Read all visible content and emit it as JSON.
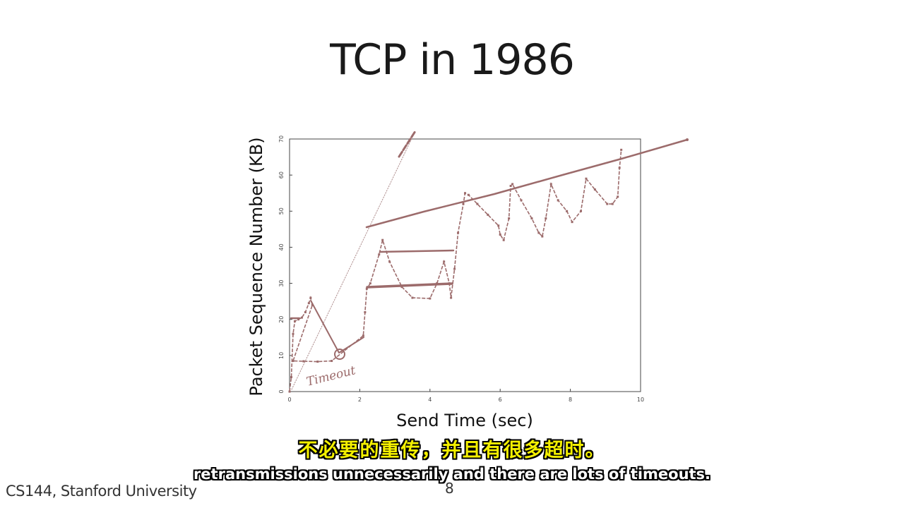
{
  "slide": {
    "title": "TCP in 1986",
    "footer": "CS144, Stanford University",
    "page_number": "8"
  },
  "subtitles": {
    "zh": "不必要的重传，并且有很多超时。",
    "en": "retransmissions unnecessarily and there are lots of timeouts."
  },
  "chart_data": {
    "type": "scatter",
    "title": "",
    "xlabel": "Send Time (sec)",
    "ylabel": "Packet Sequence Number (KB)",
    "xlim": [
      0,
      10
    ],
    "ylim": [
      0,
      70
    ],
    "xticks": [
      0,
      2,
      4,
      6,
      8,
      10
    ],
    "yticks": [
      0,
      10,
      20,
      30,
      40,
      50,
      60,
      70
    ],
    "grid": false,
    "series": [
      {
        "values": [
          [
            0.0,
            0
          ],
          [
            0.05,
            4
          ],
          [
            0.1,
            16
          ],
          [
            0.15,
            19.5
          ],
          [
            0.25,
            20
          ],
          [
            0.35,
            20.5
          ],
          [
            0.45,
            22
          ],
          [
            0.55,
            24.5
          ],
          [
            0.6,
            26
          ],
          [
            0.65,
            24
          ],
          [
            0.1,
            8.5
          ],
          [
            0.4,
            8.4
          ],
          [
            0.8,
            8.3
          ],
          [
            1.2,
            8.5
          ],
          [
            2.1,
            15.5
          ],
          [
            2.15,
            22
          ],
          [
            2.2,
            28.5
          ],
          [
            2.3,
            30
          ],
          [
            2.55,
            38
          ],
          [
            2.65,
            42
          ],
          [
            2.85,
            36
          ],
          [
            3.2,
            29
          ],
          [
            3.5,
            26
          ],
          [
            4.0,
            25.8
          ],
          [
            4.2,
            30
          ],
          [
            4.4,
            36
          ],
          [
            4.55,
            30
          ],
          [
            4.6,
            26
          ],
          [
            4.7,
            34
          ],
          [
            4.8,
            44
          ],
          [
            4.95,
            52
          ],
          [
            5.0,
            55
          ],
          [
            5.1,
            54.5
          ],
          [
            5.35,
            52
          ],
          [
            5.65,
            49
          ],
          [
            5.95,
            46
          ],
          [
            6.0,
            43.5
          ],
          [
            6.1,
            42
          ],
          [
            6.25,
            48
          ],
          [
            6.3,
            57
          ],
          [
            6.35,
            57.5
          ],
          [
            6.6,
            53
          ],
          [
            6.9,
            48
          ],
          [
            7.1,
            44
          ],
          [
            7.2,
            43
          ],
          [
            7.3,
            48
          ],
          [
            7.45,
            57.5
          ],
          [
            7.65,
            53
          ],
          [
            7.9,
            50
          ],
          [
            8.05,
            47
          ],
          [
            8.3,
            50
          ],
          [
            8.45,
            59
          ],
          [
            8.7,
            56
          ],
          [
            9.05,
            52
          ],
          [
            9.2,
            52
          ],
          [
            9.35,
            54
          ],
          [
            9.4,
            62
          ],
          [
            9.45,
            67
          ]
        ]
      }
    ]
  },
  "annotations": {
    "timeout_label": "Timeout"
  }
}
